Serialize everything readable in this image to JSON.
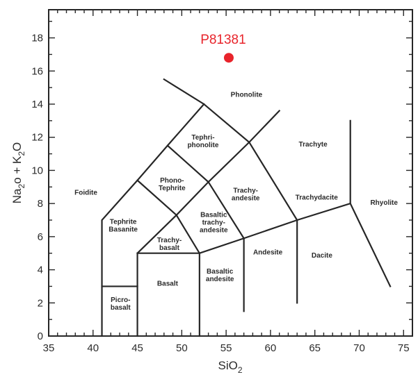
{
  "chart_data": {
    "type": "scatter",
    "xlabel": "SiO",
    "xlabel_sub": "2",
    "ylabel_parts": [
      {
        "t": "Na",
        "sub": false
      },
      {
        "t": "2",
        "sub": true
      },
      {
        "t": "o + K",
        "sub": false
      },
      {
        "t": "2",
        "sub": true
      },
      {
        "t": "O",
        "sub": false
      }
    ],
    "xlim": [
      35,
      76
    ],
    "ylim": [
      0,
      19.7
    ],
    "x_ticks": [
      35,
      40,
      45,
      50,
      55,
      60,
      65,
      70,
      75
    ],
    "y_ticks": [
      0,
      2,
      4,
      6,
      8,
      10,
      12,
      14,
      16,
      18
    ],
    "grid": false,
    "point_color": "#e8242b",
    "points": [
      {
        "label": "P81381",
        "x": 55.3,
        "y": 16.8
      }
    ],
    "boundaries": [
      [
        [
          41,
          0
        ],
        [
          41,
          7
        ],
        [
          45,
          9.4
        ],
        [
          48.4,
          11.5
        ],
        [
          52.5,
          14
        ],
        [
          48,
          15.5
        ]
      ],
      [
        [
          41,
          3
        ],
        [
          45,
          3
        ]
      ],
      [
        [
          45,
          0
        ],
        [
          45,
          5
        ],
        [
          52,
          5
        ]
      ],
      [
        [
          52,
          0
        ],
        [
          52,
          5
        ],
        [
          57,
          5.9
        ],
        [
          63,
          7
        ],
        [
          69,
          8
        ],
        [
          73.5,
          3
        ]
      ],
      [
        [
          57,
          1.5
        ],
        [
          57,
          5.9
        ]
      ],
      [
        [
          63,
          2
        ],
        [
          63,
          7
        ]
      ],
      [
        [
          69,
          8
        ],
        [
          69,
          13
        ]
      ],
      [
        [
          45,
          5
        ],
        [
          49.4,
          7.3
        ],
        [
          53,
          9.3
        ],
        [
          57.6,
          11.7
        ],
        [
          61,
          13.6
        ]
      ],
      [
        [
          49.4,
          7.3
        ],
        [
          45,
          9.4
        ]
      ],
      [
        [
          53,
          9.3
        ],
        [
          48.4,
          11.5
        ]
      ],
      [
        [
          57.6,
          11.7
        ],
        [
          52.5,
          14
        ]
      ],
      [
        [
          52,
          5
        ],
        [
          49.4,
          7.3
        ]
      ],
      [
        [
          57,
          5.9
        ],
        [
          53,
          9.3
        ]
      ],
      [
        [
          63,
          7
        ],
        [
          57.6,
          11.7
        ]
      ]
    ],
    "field_labels": [
      {
        "lines": [
          "Phonolite"
        ],
        "x": 57.3,
        "y": 14.6
      },
      {
        "lines": [
          "Tephri-",
          "phonolite"
        ],
        "x": 52.4,
        "y": 11.8
      },
      {
        "lines": [
          "Trachyte"
        ],
        "x": 64.8,
        "y": 11.6
      },
      {
        "lines": [
          "Phono-",
          "Tephrite"
        ],
        "x": 48.9,
        "y": 9.2
      },
      {
        "lines": [
          "Trachy-",
          "andesite"
        ],
        "x": 57.2,
        "y": 8.6
      },
      {
        "lines": [
          "Trachydacite"
        ],
        "x": 65.2,
        "y": 8.4
      },
      {
        "lines": [
          "Foidite"
        ],
        "x": 39.2,
        "y": 8.7
      },
      {
        "lines": [
          "Rhyolite"
        ],
        "x": 72.8,
        "y": 8.1
      },
      {
        "lines": [
          "Tephrite",
          "Basanite"
        ],
        "x": 43.4,
        "y": 6.7
      },
      {
        "lines": [
          "Basaltic",
          "trachy-",
          "andesite"
        ],
        "x": 53.6,
        "y": 6.9
      },
      {
        "lines": [
          "Trachy-",
          "basalt"
        ],
        "x": 48.6,
        "y": 5.6
      },
      {
        "lines": [
          "Andesite"
        ],
        "x": 59.7,
        "y": 5.1
      },
      {
        "lines": [
          "Dacite"
        ],
        "x": 65.8,
        "y": 4.9
      },
      {
        "lines": [
          "Basalt"
        ],
        "x": 48.4,
        "y": 3.2
      },
      {
        "lines": [
          "Basaltic",
          "andesite"
        ],
        "x": 54.3,
        "y": 3.7
      },
      {
        "lines": [
          "Picro-",
          "basalt"
        ],
        "x": 43.1,
        "y": 2.0
      }
    ]
  }
}
